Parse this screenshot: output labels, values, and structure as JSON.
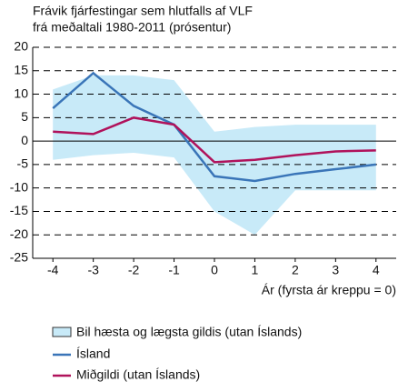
{
  "chart_data": {
    "type": "line",
    "title": [
      "Frávik fjárfestingar sem hlutfalls af VLF",
      "frá meðaltali 1980-2011 (prósentur)"
    ],
    "x_label": "Ár (fyrsta ár kreppu = 0)",
    "x": [
      -4,
      -3,
      -2,
      -1,
      0,
      1,
      2,
      3,
      4
    ],
    "xlim": [
      -4.5,
      4.5
    ],
    "xticks": [
      -4,
      -3,
      -2,
      -1,
      0,
      1,
      2,
      3,
      4
    ],
    "ylim": [
      -25,
      20
    ],
    "yticks": [
      -25,
      -20,
      -15,
      -10,
      -5,
      0,
      5,
      10,
      15,
      20
    ],
    "grid": true,
    "band": {
      "name": "Bil hæsta og lægsta gildis (utan Íslands)",
      "color": "#c8eaf8",
      "upper": [
        11,
        14,
        14,
        13,
        2,
        3,
        3.5,
        3.5,
        3.5
      ],
      "lower": [
        -4,
        -3,
        -2.5,
        -3.5,
        -15,
        -20,
        -10.5,
        -10.5,
        -10.5
      ]
    },
    "series": [
      {
        "name": "Ísland",
        "color": "#3a75b8",
        "values": [
          7,
          14.5,
          7.5,
          3.5,
          -7.5,
          -8.5,
          -7,
          -6,
          -5
        ]
      },
      {
        "name": "Miðgildi (utan Íslands)",
        "color": "#b0125b",
        "values": [
          2,
          1.5,
          5,
          3.5,
          -4.5,
          -4,
          -3,
          -2.2,
          -2
        ]
      }
    ]
  }
}
